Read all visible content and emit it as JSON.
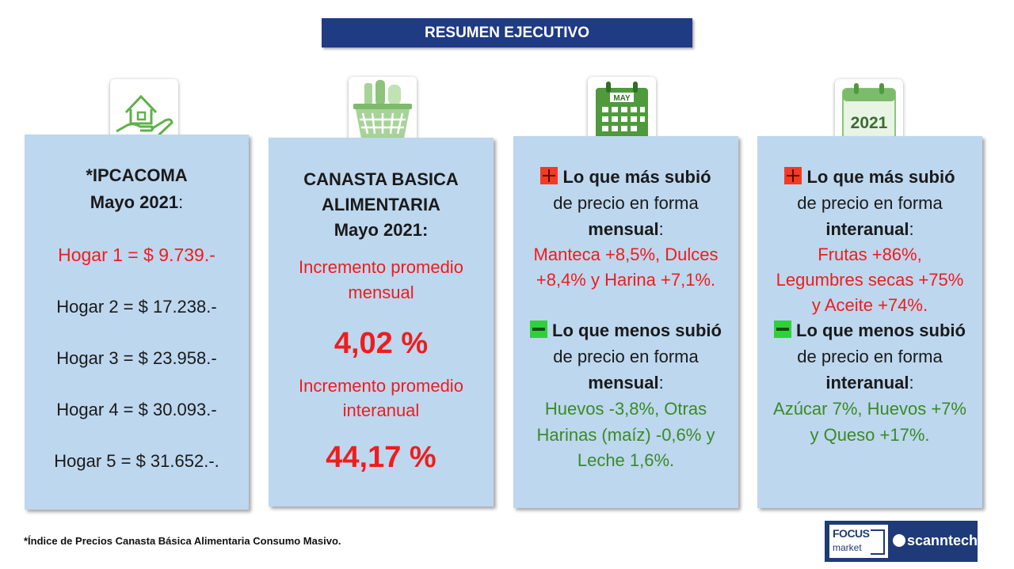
{
  "header": {
    "title": "RESUMEN EJECUTIVO"
  },
  "icons": {
    "house": "house-hand-icon",
    "basket": "grocery-basket-icon",
    "calendar_may": "calendar-may-icon",
    "calendar_2021": "calendar-2021-icon",
    "calendar_may_label": "MAY",
    "calendar_2021_label": "2021"
  },
  "ipcacoma": {
    "title": "*IPCACOMA",
    "subtitle_bold": "Mayo 2021",
    "subtitle_colon": ":",
    "hogares": [
      "Hogar 1 = $ 9.739.-",
      "Hogar 2 = $ 17.238.-",
      "Hogar 3 = $ 23.958.-",
      "Hogar 4 = $ 30.093.-",
      "Hogar 5 = $ 31.652.-."
    ]
  },
  "canasta": {
    "title_line1": "CANASTA BASICA",
    "title_line2": "ALIMENTARIA",
    "title_line3": "Mayo 2021:",
    "monthly_label_line1": "Incremento promedio",
    "monthly_label_line2": "mensual",
    "monthly_value": "4,02 %",
    "annual_label_line1": "Incremento promedio",
    "annual_label_line2": "interanual",
    "annual_value": "44,17 %"
  },
  "mensual": {
    "up_heading": "Lo que más subió",
    "up_line2": "de precio en forma",
    "up_line3": "mensual",
    "up_colon": ":",
    "up_items": [
      "Manteca +8,5%,  Dulces",
      "+8,4% y Harina +7,1%."
    ],
    "down_heading": "Lo que menos subió",
    "down_line2": "de precio en forma",
    "down_line3": "mensual",
    "down_colon": ":",
    "down_items": [
      "Huevos -3,8%, Otras",
      "Harinas (maíz) -0,6%  y",
      "Leche 1,6%."
    ]
  },
  "interanual": {
    "up_heading": "Lo que más subió",
    "up_line2": "de precio en forma",
    "up_line3": "interanual",
    "up_colon": ":",
    "up_items": [
      "Frutas +86%,",
      "Legumbres secas +75%",
      "y Aceite +74%."
    ],
    "down_heading": "Lo que menos subió",
    "down_line2": "de precio en forma",
    "down_line3": "interanual",
    "down_colon": ":",
    "down_items": [
      "Azúcar 7%, Huevos +7%",
      "y Queso +17%."
    ]
  },
  "footer": {
    "footnote": "*Índice de Precios Canasta Básica Alimentaria Consumo Masivo.",
    "logo_focus_line1": "FOCUS",
    "logo_focus_line2": "market",
    "logo_scanntech": "scanntech"
  },
  "colors": {
    "panel": "#bdd7ee",
    "title_bar": "#1f3b84",
    "red": "#f01c1c",
    "green": "#3a8a28",
    "icon_green": "#5fb04a"
  }
}
